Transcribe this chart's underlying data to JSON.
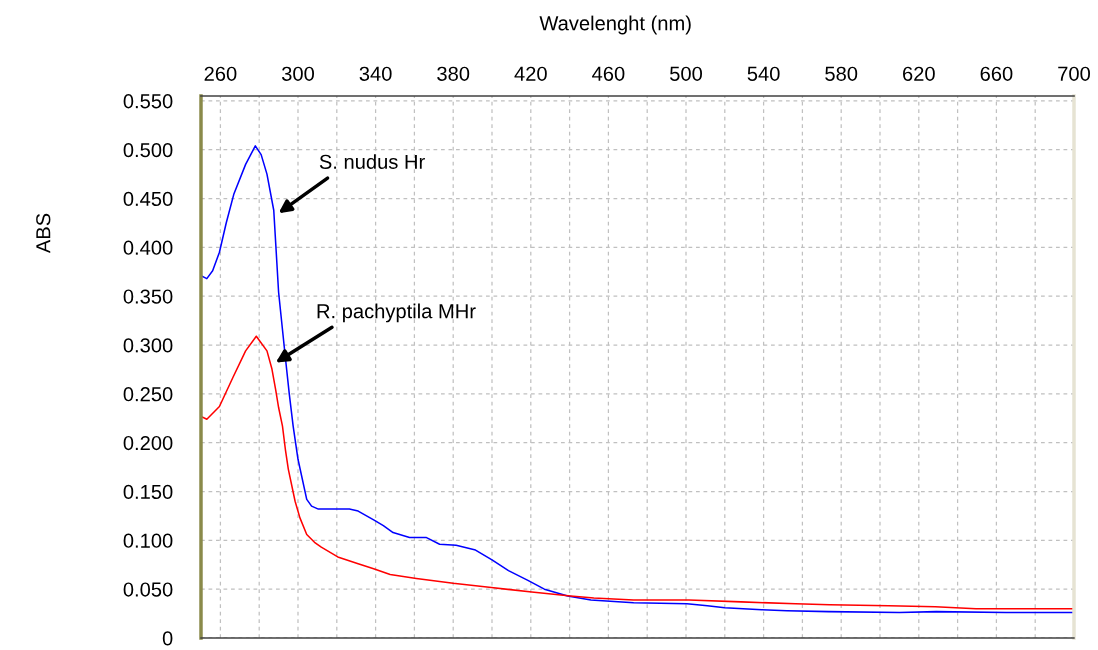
{
  "chart_data": {
    "type": "line",
    "xlabel": "Wavelenght (nm)",
    "ylabel": "ABS",
    "xlim": [
      250,
      700
    ],
    "xticks": [
      260,
      {
        "value": 280,
        "label": null
      },
      300,
      {
        "value": 320,
        "label": null
      },
      340,
      {
        "value": 360,
        "label": null
      },
      380,
      {
        "value": 400,
        "label": null
      },
      420,
      {
        "value": 440,
        "label": null
      },
      460,
      {
        "value": 480,
        "label": null
      },
      500,
      {
        "value": 520,
        "label": null
      },
      540,
      {
        "value": 560,
        "label": null
      },
      580,
      {
        "value": 600,
        "label": null
      },
      620,
      {
        "value": 640,
        "label": null
      },
      660,
      {
        "value": 680,
        "label": null
      },
      700
    ],
    "ylim": [
      0,
      0.555
    ],
    "yticks": [
      0,
      {
        "value": 0.05,
        "label": "0.050"
      },
      {
        "value": 0.1,
        "label": "0.100"
      },
      {
        "value": 0.15,
        "label": "0.150"
      },
      {
        "value": 0.2,
        "label": "0.200"
      },
      {
        "value": 0.25,
        "label": "0.250"
      },
      {
        "value": 0.3,
        "label": "0.300"
      },
      {
        "value": 0.35,
        "label": "0.350"
      },
      {
        "value": 0.4,
        "label": "0.400"
      },
      {
        "value": 0.45,
        "label": "0.450"
      },
      {
        "value": 0.5,
        "label": "0.500"
      },
      {
        "value": 0.55,
        "label": "0.550"
      }
    ],
    "grid": true,
    "marker": "none",
    "line_style": "solid",
    "series": [
      {
        "color": "#0000ff",
        "x": [
          250,
          253,
          256,
          259.5,
          263,
          267,
          273,
          278,
          281,
          284,
          287.5,
          290,
          293.5,
          295.5,
          297.5,
          300,
          304.5,
          307,
          310.5,
          326.5,
          331,
          339,
          344,
          349,
          357.5,
          366,
          373,
          381.5,
          391.5,
          400,
          408.5,
          418.5,
          427,
          439,
          451,
          459,
          473,
          500.5,
          511,
          520,
          539,
          552,
          573.5,
          610,
          629,
          665,
          700
        ],
        "values": [
          0.371,
          0.368,
          0.376,
          0.395,
          0.425,
          0.455,
          0.485,
          0.504,
          0.495,
          0.475,
          0.438,
          0.354,
          0.287,
          0.25,
          0.217,
          0.183,
          0.142,
          0.135,
          0.132,
          0.132,
          0.13,
          0.121,
          0.115,
          0.108,
          0.103,
          0.103,
          0.096,
          0.095,
          0.09,
          0.08,
          0.069,
          0.059,
          0.05,
          0.043,
          0.039,
          0.038,
          0.036,
          0.035,
          0.033,
          0.031,
          0.029,
          0.028,
          0.027,
          0.026,
          0.027,
          0.026,
          0.026
        ]
      },
      {
        "color": "#ff0000",
        "x": [
          250,
          253,
          259.5,
          266.5,
          273,
          278.5,
          284,
          286.5,
          288.5,
          290,
          292,
          293.5,
          295,
          298.5,
          301,
          304.5,
          308.5,
          312,
          320.5,
          331,
          339,
          347.5,
          361,
          380,
          398.5,
          420.5,
          440.5,
          452.5,
          473,
          501.5,
          528.5,
          556.5,
          574,
          604.5,
          628.5,
          649.5,
          700
        ],
        "values": [
          0.227,
          0.224,
          0.237,
          0.267,
          0.294,
          0.309,
          0.294,
          0.276,
          0.254,
          0.236,
          0.217,
          0.193,
          0.173,
          0.14,
          0.123,
          0.106,
          0.098,
          0.093,
          0.083,
          0.076,
          0.071,
          0.065,
          0.061,
          0.056,
          0.052,
          0.047,
          0.043,
          0.041,
          0.039,
          0.039,
          0.037,
          0.035,
          0.034,
          0.033,
          0.032,
          0.03,
          0.03
        ]
      }
    ],
    "annotations": [
      {
        "text": "S. nudus Hr",
        "x": 290,
        "y": 0.435
      },
      {
        "text": "R. pachyptila MHr",
        "x": 288.5,
        "y": 0.282
      }
    ]
  }
}
